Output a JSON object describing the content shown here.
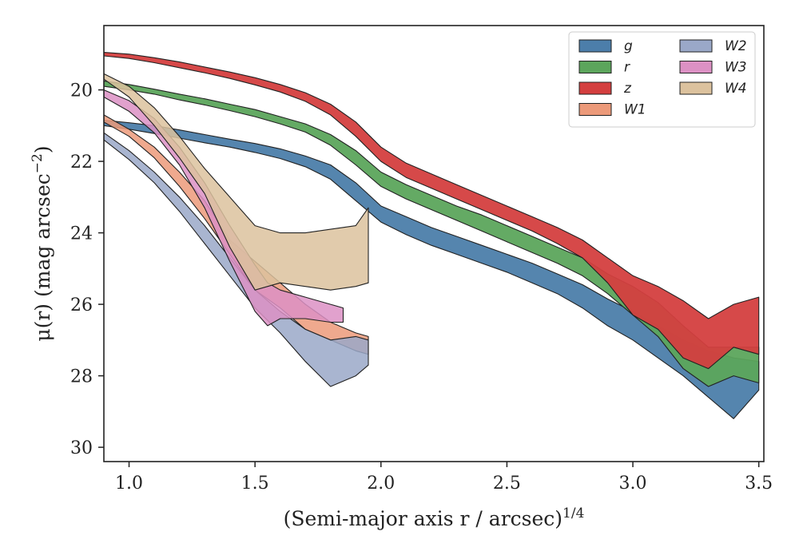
{
  "chart_data": {
    "type": "area",
    "xlabel": "(Semi-major axis r / arcsec)",
    "xlabel_exponent": "1/4",
    "ylabel": "μ(r) (mag arcsec",
    "ylabel_exponent": "−2",
    "ylabel_tail": ")",
    "xlim": [
      0.9,
      3.52
    ],
    "ylim": [
      30.4,
      18.2
    ],
    "y_inverted": true,
    "xticks": [
      1.0,
      1.5,
      2.0,
      2.5,
      3.0,
      3.5
    ],
    "xtick_labels": [
      "1.0",
      "1.5",
      "2.0",
      "2.5",
      "3.0",
      "3.5"
    ],
    "yticks": [
      20,
      22,
      24,
      26,
      28,
      30
    ],
    "ytick_labels": [
      "20",
      "22",
      "24",
      "26",
      "28",
      "30"
    ],
    "grid": false,
    "legend_position": "top-right",
    "legend_columns": 2,
    "series": [
      {
        "name": "g",
        "color": "#4c7eaa",
        "x": [
          0.9,
          1.0,
          1.1,
          1.2,
          1.3,
          1.4,
          1.5,
          1.6,
          1.7,
          1.8,
          1.9,
          2.0,
          2.1,
          2.2,
          2.3,
          2.4,
          2.5,
          2.6,
          2.7,
          2.8,
          2.9,
          3.0,
          3.1,
          3.2,
          3.3,
          3.4,
          3.5
        ],
        "lower": [
          20.85,
          20.92,
          21.0,
          21.12,
          21.25,
          21.38,
          21.5,
          21.65,
          21.85,
          22.1,
          22.6,
          23.25,
          23.55,
          23.85,
          24.1,
          24.35,
          24.6,
          24.85,
          25.15,
          25.45,
          25.85,
          26.2,
          26.6,
          27.0,
          27.3,
          27.5,
          27.6
        ],
        "upper": [
          21.0,
          21.1,
          21.22,
          21.35,
          21.48,
          21.6,
          21.75,
          21.92,
          22.15,
          22.5,
          23.1,
          23.7,
          24.05,
          24.35,
          24.6,
          24.85,
          25.1,
          25.4,
          25.7,
          26.1,
          26.6,
          27.0,
          27.5,
          28.0,
          28.6,
          29.2,
          28.4
        ]
      },
      {
        "name": "r",
        "color": "#5ca55c",
        "x": [
          0.9,
          1.0,
          1.1,
          1.2,
          1.3,
          1.4,
          1.5,
          1.6,
          1.7,
          1.8,
          1.9,
          2.0,
          2.1,
          2.2,
          2.3,
          2.4,
          2.5,
          2.6,
          2.7,
          2.8,
          2.9,
          3.0,
          3.1,
          3.2,
          3.3,
          3.4,
          3.5
        ],
        "lower": [
          19.75,
          19.85,
          19.98,
          20.12,
          20.25,
          20.4,
          20.55,
          20.75,
          20.95,
          21.25,
          21.7,
          22.3,
          22.65,
          22.95,
          23.25,
          23.5,
          23.8,
          24.1,
          24.4,
          24.7,
          25.15,
          25.5,
          25.95,
          26.6,
          27.2,
          27.2,
          27.2
        ],
        "upper": [
          19.9,
          20.0,
          20.12,
          20.28,
          20.42,
          20.58,
          20.75,
          20.95,
          21.18,
          21.55,
          22.1,
          22.7,
          23.05,
          23.35,
          23.65,
          23.95,
          24.25,
          24.55,
          24.85,
          25.2,
          25.7,
          26.3,
          26.9,
          27.8,
          28.3,
          28.0,
          28.2
        ]
      },
      {
        "name": "z",
        "color": "#d43f3f",
        "x": [
          0.9,
          1.0,
          1.1,
          1.2,
          1.3,
          1.4,
          1.5,
          1.6,
          1.7,
          1.8,
          1.9,
          2.0,
          2.1,
          2.2,
          2.3,
          2.4,
          2.5,
          2.6,
          2.7,
          2.8,
          2.9,
          3.0,
          3.1,
          3.2,
          3.3,
          3.4,
          3.5
        ],
        "lower": [
          18.95,
          19.0,
          19.1,
          19.22,
          19.36,
          19.5,
          19.66,
          19.85,
          20.08,
          20.4,
          20.9,
          21.6,
          22.05,
          22.35,
          22.65,
          22.95,
          23.25,
          23.55,
          23.85,
          24.2,
          24.7,
          25.2,
          25.5,
          25.9,
          26.4,
          26.0,
          25.8
        ],
        "upper": [
          19.05,
          19.12,
          19.24,
          19.38,
          19.52,
          19.68,
          19.86,
          20.06,
          20.32,
          20.7,
          21.3,
          22.0,
          22.45,
          22.75,
          23.05,
          23.35,
          23.65,
          23.95,
          24.3,
          24.7,
          25.4,
          26.3,
          26.7,
          27.5,
          27.8,
          27.2,
          27.4
        ]
      },
      {
        "name": "W1",
        "color": "#ec9a7a",
        "x": [
          0.9,
          1.0,
          1.1,
          1.2,
          1.3,
          1.4,
          1.5,
          1.6,
          1.7,
          1.8,
          1.9,
          1.95
        ],
        "lower": [
          20.7,
          21.1,
          21.6,
          22.3,
          23.1,
          24.2,
          24.8,
          25.4,
          26.0,
          26.5,
          26.8,
          26.9
        ],
        "upper": [
          20.9,
          21.3,
          21.9,
          22.7,
          23.6,
          24.6,
          25.6,
          26.1,
          26.7,
          27.0,
          27.3,
          27.4
        ]
      },
      {
        "name": "W2",
        "color": "#9aa8c8",
        "x": [
          0.9,
          1.0,
          1.1,
          1.2,
          1.3,
          1.4,
          1.5,
          1.6,
          1.7,
          1.8,
          1.9,
          1.95
        ],
        "lower": [
          21.2,
          21.7,
          22.3,
          23.0,
          23.8,
          24.7,
          25.6,
          26.2,
          26.7,
          27.0,
          26.9,
          27.0
        ],
        "upper": [
          21.4,
          21.95,
          22.6,
          23.4,
          24.3,
          25.2,
          26.1,
          26.8,
          27.6,
          28.3,
          28.0,
          27.7
        ]
      },
      {
        "name": "W3",
        "color": "#dc91c4",
        "x": [
          0.9,
          1.0,
          1.1,
          1.2,
          1.3,
          1.4,
          1.5,
          1.55,
          1.6,
          1.7,
          1.8,
          1.85
        ],
        "lower": [
          20.0,
          20.3,
          20.8,
          21.6,
          22.6,
          23.8,
          24.9,
          25.4,
          25.6,
          25.8,
          26.0,
          26.1
        ],
        "upper": [
          20.2,
          20.6,
          21.2,
          22.1,
          23.3,
          24.8,
          26.2,
          26.6,
          26.4,
          26.4,
          26.5,
          26.5
        ]
      },
      {
        "name": "W4",
        "color": "#dcc29e",
        "x": [
          0.9,
          1.0,
          1.1,
          1.2,
          1.3,
          1.4,
          1.5,
          1.6,
          1.7,
          1.8,
          1.9,
          1.95
        ],
        "lower": [
          19.55,
          19.9,
          20.5,
          21.3,
          22.2,
          23.0,
          23.8,
          24.0,
          24.0,
          23.9,
          23.8,
          23.3
        ],
        "upper": [
          19.7,
          20.2,
          21.0,
          21.9,
          22.9,
          24.4,
          25.6,
          25.4,
          25.5,
          25.6,
          25.5,
          25.4
        ]
      }
    ]
  }
}
